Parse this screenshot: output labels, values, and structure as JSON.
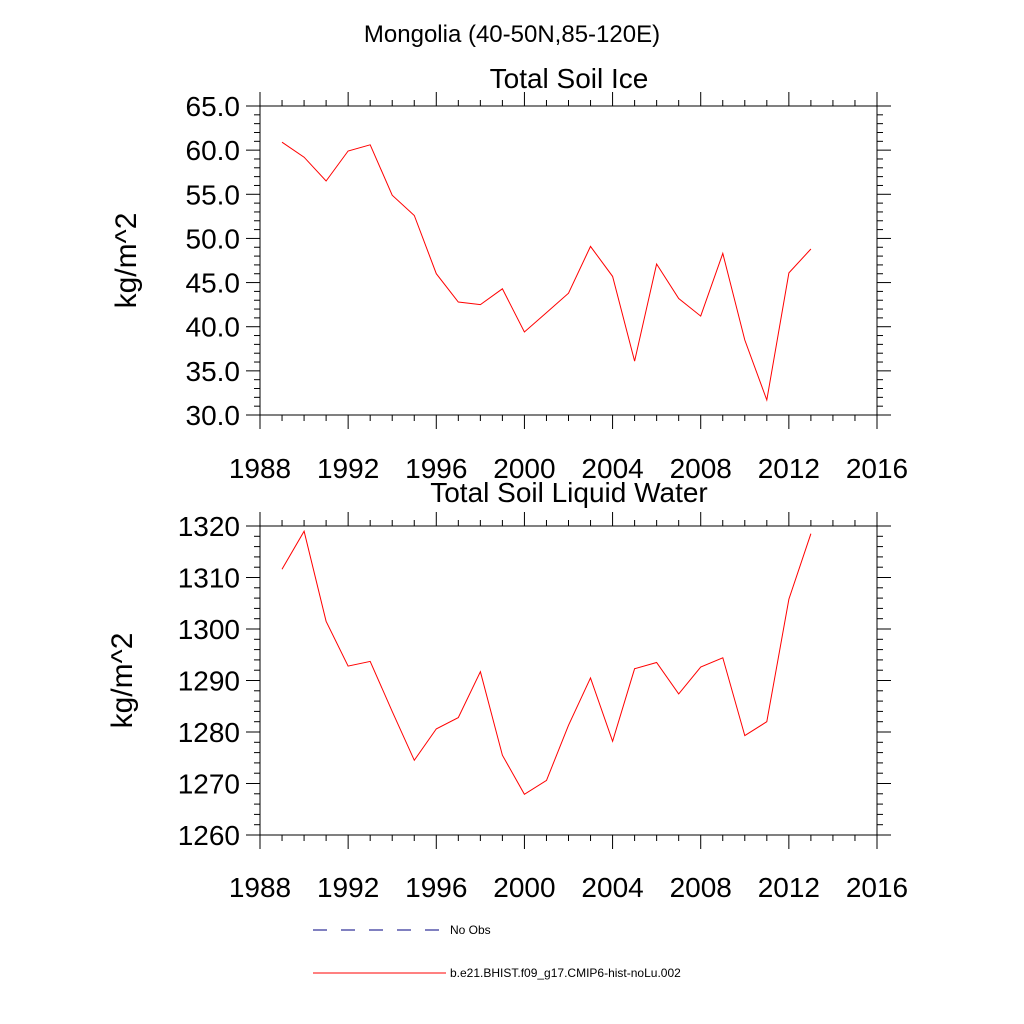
{
  "figure_title": "Mongolia (40-50N,85-120E)",
  "colors": {
    "model": "#ff0000",
    "obs": "#000080",
    "axis": "#000000"
  },
  "chart_data": [
    {
      "type": "line",
      "title": "Total Soil Ice",
      "xlabel": "",
      "ylabel": "kg/m^2",
      "xlim": [
        1988,
        2016
      ],
      "ylim": [
        30,
        65
      ],
      "x_ticks": [
        "1988",
        "1992",
        "1996",
        "2000",
        "2004",
        "2008",
        "2012",
        "2016"
      ],
      "y_ticks": [
        "30.0",
        "35.0",
        "40.0",
        "45.0",
        "50.0",
        "55.0",
        "60.0",
        "65.0"
      ],
      "grid": false,
      "series": [
        {
          "name": "b.e21.BHIST.f09_g17.CMIP6-hist-noLu.002",
          "x": [
            1989,
            1990,
            1991,
            1992,
            1993,
            1994,
            1995,
            1996,
            1997,
            1998,
            1999,
            2000,
            2001,
            2002,
            2003,
            2004,
            2005,
            2006,
            2007,
            2008,
            2009,
            2010,
            2011,
            2012,
            2013
          ],
          "values": [
            60.9,
            59.2,
            56.5,
            59.9,
            60.6,
            54.9,
            52.6,
            46.0,
            42.8,
            42.5,
            44.3,
            39.4,
            41.6,
            43.8,
            49.1,
            45.7,
            36.1,
            47.1,
            43.2,
            41.2,
            48.3,
            38.5,
            31.7,
            46.1,
            48.8
          ]
        }
      ]
    },
    {
      "type": "line",
      "title": "Total Soil Liquid Water",
      "xlabel": "",
      "ylabel": "kg/m^2",
      "xlim": [
        1988,
        2016
      ],
      "ylim": [
        1260,
        1320
      ],
      "x_ticks": [
        "1988",
        "1992",
        "1996",
        "2000",
        "2004",
        "2008",
        "2012",
        "2016"
      ],
      "y_ticks": [
        "1260",
        "1270",
        "1280",
        "1290",
        "1300",
        "1310",
        "1320"
      ],
      "grid": false,
      "series": [
        {
          "name": "b.e21.BHIST.f09_g17.CMIP6-hist-noLu.002",
          "x": [
            1989,
            1990,
            1991,
            1992,
            1993,
            1994,
            1995,
            1996,
            1997,
            1998,
            1999,
            2000,
            2001,
            2002,
            2003,
            2004,
            2005,
            2006,
            2007,
            2008,
            2009,
            2010,
            2011,
            2012,
            2013
          ],
          "values": [
            1311.6,
            1319.0,
            1301.5,
            1292.8,
            1293.7,
            1284.0,
            1274.5,
            1280.6,
            1282.8,
            1291.7,
            1275.5,
            1267.9,
            1270.6,
            1281.3,
            1290.5,
            1278.2,
            1292.3,
            1293.5,
            1287.4,
            1292.6,
            1294.4,
            1279.3,
            1282.0,
            1305.8,
            1318.5
          ]
        }
      ]
    }
  ],
  "legend": {
    "placement": "bottom-center",
    "items": [
      {
        "label": "No Obs",
        "style": "dashed",
        "color": "#000080"
      },
      {
        "label": "b.e21.BHIST.f09_g17.CMIP6-hist-noLu.002",
        "style": "solid",
        "color": "#ff0000"
      }
    ]
  }
}
